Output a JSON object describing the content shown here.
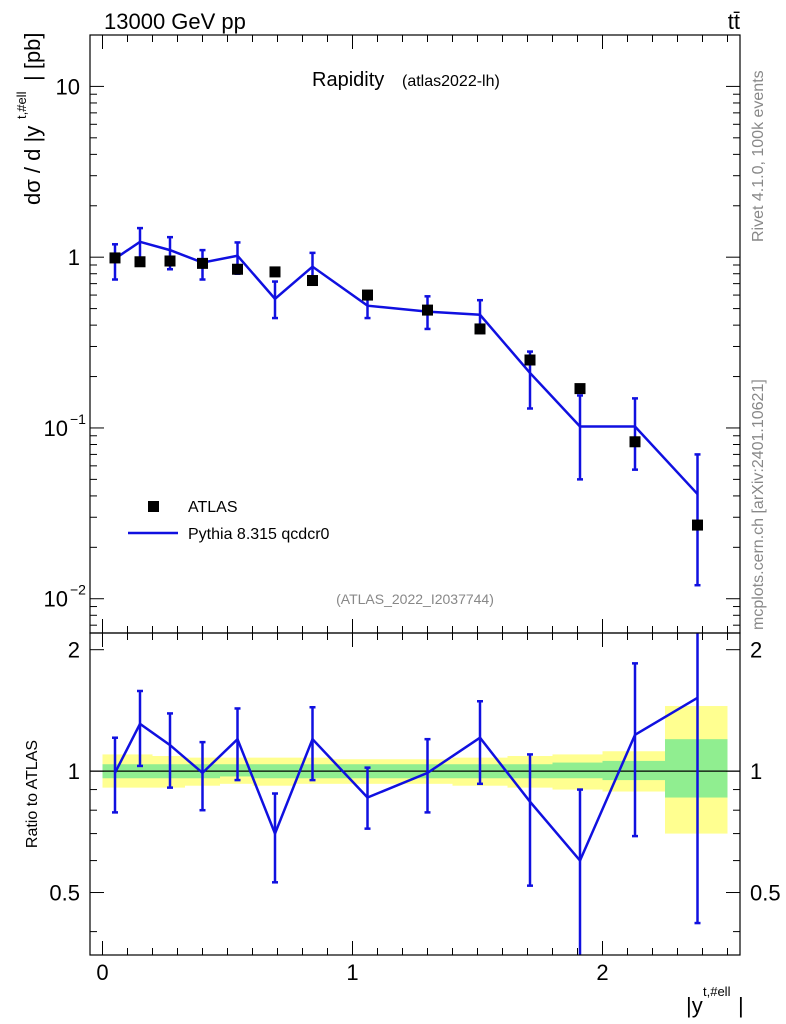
{
  "header": {
    "energy_label": "13000 GeV pp",
    "process_label": "tt̄"
  },
  "side_labels": {
    "rivet": "Rivet 4.1.0,  100k events",
    "mcplots": "mcplots.cern.ch [arXiv:2401.10621]"
  },
  "chart_data": [
    {
      "type": "scatter",
      "panel": "main",
      "title": "Rapidity",
      "subtitle": "(atlas2022-lh)",
      "watermark": "(ATLAS_2022_I2037744)",
      "ylabel_main": "dσ / d |y",
      "ylabel_sup": "t,#ell",
      "ylabel_unit": "| [pb]",
      "yscale": "log",
      "ylim": [
        0.0063,
        20
      ],
      "xlim": [
        -0.05,
        2.55
      ],
      "yticks": [
        {
          "value": 0.01,
          "label": "10",
          "exp": "−2"
        },
        {
          "value": 0.1,
          "label": "10",
          "exp": "−1"
        },
        {
          "value": 1,
          "label": "1",
          "exp": ""
        },
        {
          "value": 10,
          "label": "10",
          "exp": ""
        }
      ],
      "legend": [
        "ATLAS",
        "Pythia 8.315 qcdcr0"
      ],
      "legend_position": "lower-left",
      "series": [
        {
          "name": "ATLAS",
          "style": "markers",
          "color": "#000000",
          "x": [
            0.05,
            0.15,
            0.27,
            0.4,
            0.54,
            0.69,
            0.84,
            1.06,
            1.3,
            1.51,
            1.71,
            1.91,
            2.13,
            2.38
          ],
          "y": [
            0.99,
            0.94,
            0.95,
            0.92,
            0.85,
            0.82,
            0.73,
            0.6,
            0.49,
            0.38,
            0.25,
            0.17,
            0.083,
            0.027
          ]
        },
        {
          "name": "Pythia 8.315 qcdcr0",
          "style": "step-line",
          "color": "#1010e0",
          "x": [
            0.05,
            0.15,
            0.27,
            0.4,
            0.54,
            0.69,
            0.84,
            1.06,
            1.3,
            1.51,
            1.71,
            1.91,
            2.13,
            2.38
          ],
          "y": [
            0.98,
            1.23,
            1.1,
            0.93,
            1.02,
            0.57,
            0.88,
            0.52,
            0.48,
            0.46,
            0.21,
            0.102,
            0.102,
            0.041
          ],
          "yerr_low": [
            0.74,
            0.96,
            0.85,
            0.74,
            0.8,
            0.44,
            0.7,
            0.44,
            0.38,
            0.36,
            0.13,
            0.05,
            0.057,
            0.012
          ],
          "yerr_high": [
            1.19,
            1.48,
            1.31,
            1.1,
            1.22,
            0.72,
            1.06,
            0.61,
            0.59,
            0.56,
            0.28,
            0.155,
            0.149,
            0.07
          ]
        }
      ]
    },
    {
      "type": "line",
      "panel": "ratio",
      "ylabel": "Ratio to ATLAS",
      "xlabel": "|y",
      "xlabel_sup": "t,#ell",
      "xlabel_tail": "|",
      "ylim": [
        0.35,
        2.2
      ],
      "xlim": [
        -0.05,
        2.55
      ],
      "xticks": [
        0,
        1,
        2
      ],
      "yticks": [
        0.5,
        1,
        2
      ],
      "bands": {
        "edges": [
          0,
          0.1,
          0.2,
          0.33,
          0.47,
          0.6,
          0.77,
          0.92,
          1.2,
          1.4,
          1.62,
          1.8,
          2.0,
          2.25,
          2.5
        ],
        "outer_color": "#ffff90",
        "inner_color": "#90ee90",
        "outer_low": [
          0.91,
          0.91,
          0.91,
          0.92,
          0.93,
          0.92,
          0.93,
          0.93,
          0.93,
          0.92,
          0.91,
          0.9,
          0.89,
          0.7
        ],
        "outer_high": [
          1.1,
          1.1,
          1.09,
          1.08,
          1.08,
          1.08,
          1.08,
          1.07,
          1.07,
          1.08,
          1.09,
          1.1,
          1.12,
          1.45
        ],
        "inner_low": [
          0.96,
          0.96,
          0.96,
          0.96,
          0.97,
          0.96,
          0.96,
          0.96,
          0.96,
          0.96,
          0.96,
          0.96,
          0.95,
          0.86
        ],
        "inner_high": [
          1.04,
          1.04,
          1.04,
          1.04,
          1.04,
          1.04,
          1.04,
          1.04,
          1.04,
          1.04,
          1.04,
          1.05,
          1.06,
          1.2
        ]
      },
      "series": [
        {
          "name": "Pythia 8.315 qcdcr0 / ATLAS",
          "color": "#1010e0",
          "x": [
            0.05,
            0.15,
            0.27,
            0.4,
            0.54,
            0.69,
            0.84,
            1.06,
            1.3,
            1.51,
            1.71,
            1.91,
            2.13,
            2.38
          ],
          "y": [
            0.99,
            1.31,
            1.16,
            0.99,
            1.2,
            0.7,
            1.2,
            0.86,
            0.99,
            1.21,
            0.84,
            0.6,
            1.23,
            1.52
          ],
          "yerr_low": [
            0.79,
            1.03,
            0.91,
            0.8,
            0.95,
            0.53,
            0.95,
            0.72,
            0.79,
            0.93,
            0.52,
            0.3,
            0.69,
            0.42
          ],
          "yerr_high": [
            1.21,
            1.58,
            1.39,
            1.18,
            1.43,
            0.88,
            1.44,
            1.02,
            1.2,
            1.49,
            1.1,
            0.9,
            1.85,
            2.4
          ]
        }
      ],
      "reference_line": 1
    }
  ]
}
